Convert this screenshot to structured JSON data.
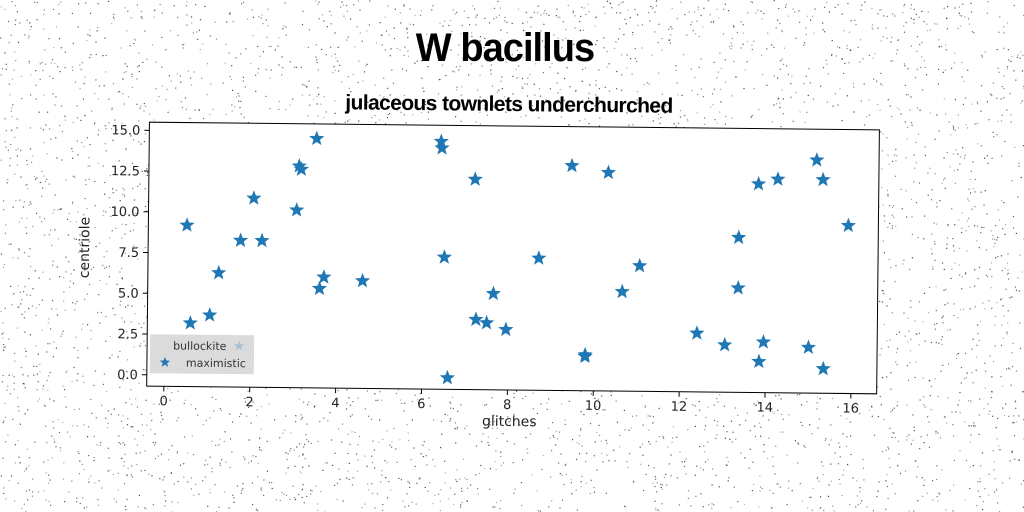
{
  "title": "W bacillus",
  "subtitle": "julaceous townlets underchurched",
  "colors": {
    "series": "#1f77b4",
    "legend_bg": "#d9d9d9",
    "axis": "#000000"
  },
  "chart_data": {
    "type": "scatter",
    "title": "W bacillus",
    "subtitle": "julaceous townlets underchurched",
    "xlabel": "glitches",
    "ylabel": "centriole",
    "xlim": [
      -0.4,
      16.6
    ],
    "ylim": [
      -0.7,
      15.5
    ],
    "xticks": [
      0,
      2,
      4,
      6,
      8,
      10,
      12,
      14,
      16
    ],
    "xtick_labels": [
      "0",
      "2",
      "4",
      "6",
      "8",
      "10",
      "12",
      "14",
      "16"
    ],
    "yticks": [
      0.0,
      2.5,
      5.0,
      7.5,
      10.0,
      12.5,
      15.0
    ],
    "ytick_labels": [
      "0.0",
      "2.5",
      "5.0",
      "7.5",
      "10.0",
      "12.5",
      "15.0"
    ],
    "grid": false,
    "legend": {
      "placement": "bottom-left",
      "entries": [
        "bullockite",
        "maximistic"
      ]
    },
    "series": [
      {
        "name": "maximistic",
        "marker": "star",
        "x": [
          0.5,
          0.6,
          1.05,
          1.25,
          1.75,
          2.05,
          2.25,
          3.05,
          3.1,
          3.15,
          3.5,
          3.6,
          3.7,
          4.6,
          6.4,
          6.42,
          6.5,
          6.6,
          7.2,
          7.25,
          7.5,
          7.65,
          7.95,
          8.7,
          9.45,
          9.8,
          9.8,
          10.3,
          10.65,
          11.05,
          12.4,
          13.05,
          13.35,
          13.35,
          13.8,
          13.85,
          13.95,
          14.25,
          15.0,
          15.15,
          15.3,
          15.35,
          15.9
        ],
        "y": [
          9.2,
          3.2,
          3.7,
          6.3,
          8.3,
          10.9,
          8.3,
          10.2,
          12.9,
          12.7,
          14.6,
          5.4,
          6.1,
          5.9,
          14.5,
          14.1,
          7.4,
          0.0,
          12.2,
          3.6,
          3.4,
          5.2,
          3.0,
          7.4,
          13.1,
          1.4,
          1.5,
          12.7,
          5.4,
          7.0,
          2.9,
          2.2,
          8.8,
          5.7,
          12.1,
          1.2,
          2.4,
          12.4,
          2.1,
          13.6,
          12.4,
          0.8,
          9.6
        ]
      }
    ]
  }
}
